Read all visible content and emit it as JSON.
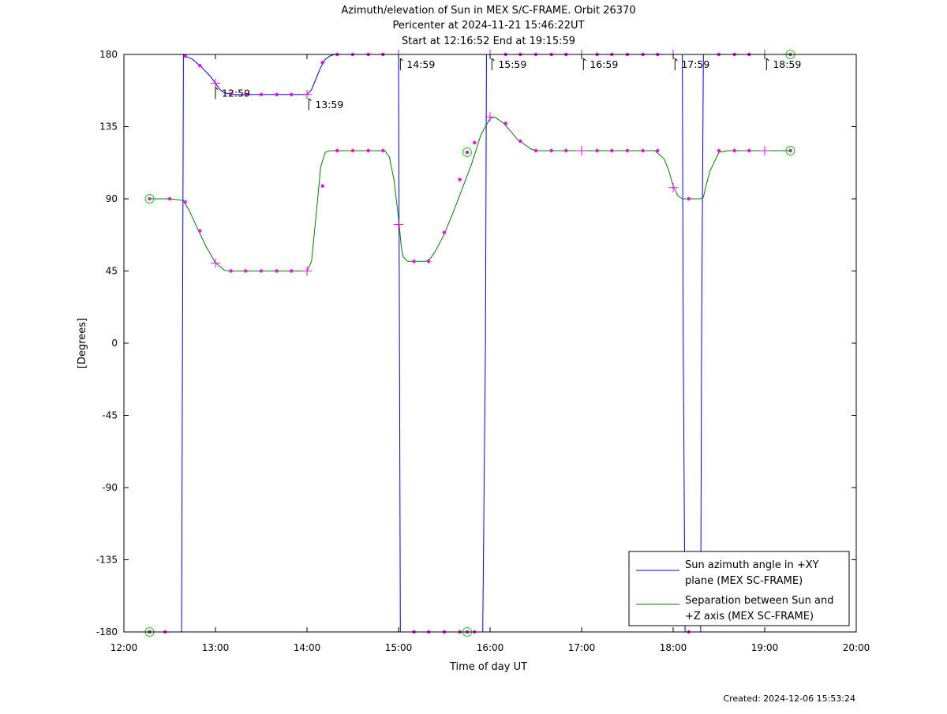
{
  "chart_data": {
    "type": "line",
    "title": [
      "Azimuth/elevation of Sun in MEX S/C-FRAME.  Orbit 26370",
      "Pericenter at 2024-11-21 15:46:22UT",
      "Start at 12:16:52 End at 19:15:59"
    ],
    "xlabel": "Time of day UT",
    "ylabel": "[Degrees]",
    "xlim": [
      12.0,
      20.0
    ],
    "ylim": [
      -180,
      180
    ],
    "x_ticks": [
      {
        "v": 12,
        "label": "12:00"
      },
      {
        "v": 13,
        "label": "13:00"
      },
      {
        "v": 14,
        "label": "14:00"
      },
      {
        "v": 15,
        "label": "15:00"
      },
      {
        "v": 16,
        "label": "16:00"
      },
      {
        "v": 17,
        "label": "17:00"
      },
      {
        "v": 18,
        "label": "18:00"
      },
      {
        "v": 19,
        "label": "19:00"
      },
      {
        "v": 20,
        "label": "20:00"
      }
    ],
    "y_ticks": [
      {
        "v": 180,
        "label": "180"
      },
      {
        "v": 135,
        "label": "135"
      },
      {
        "v": 90,
        "label": "90"
      },
      {
        "v": 45,
        "label": "45"
      },
      {
        "v": 0,
        "label": "0"
      },
      {
        "v": -45,
        "label": "-45"
      },
      {
        "v": -90,
        "label": "-90"
      },
      {
        "v": -135,
        "label": "-135"
      },
      {
        "v": -180,
        "label": "-180"
      }
    ],
    "grid": false,
    "legend_position": "bottom-right",
    "series": [
      {
        "name": "Sun azimuth angle in +XY plane (MEX SC-FRAME)",
        "legend_lines": [
          "Sun azimuth angle in +XY",
          "plane (MEX SC-FRAME)"
        ],
        "color": "#0000ff",
        "x": [
          12.28,
          12.6,
          12.63,
          12.65,
          12.67,
          12.75,
          12.85,
          12.95,
          13.0,
          13.05,
          13.1,
          13.2,
          13.3,
          13.5,
          13.7,
          13.9,
          14.0,
          14.05,
          14.1,
          14.15,
          14.2,
          14.25,
          14.3,
          14.5,
          14.7,
          14.98,
          15.0,
          15.01,
          15.02,
          15.2,
          15.5,
          15.75,
          15.92,
          15.95,
          15.96,
          16.0,
          16.5,
          17.0,
          17.5,
          17.99,
          18.1,
          18.11,
          18.13,
          18.2,
          18.3,
          18.31,
          18.33,
          18.4,
          18.6,
          19.0,
          19.28
        ],
        "y": [
          -180,
          -180,
          -180,
          180,
          179,
          177,
          172,
          166,
          162,
          158,
          156,
          155,
          155,
          155,
          155,
          155,
          155,
          158,
          165,
          172,
          177,
          179,
          180,
          180,
          180,
          180,
          180,
          0,
          -180,
          -180,
          -180,
          -180,
          -180,
          0,
          180,
          180,
          180,
          180,
          180,
          180,
          180,
          0,
          -180,
          -180,
          -180,
          0,
          180,
          180,
          180,
          180,
          180
        ]
      },
      {
        "name": "Separation between Sun and +Z axis (MEX SC-FRAME)",
        "legend_lines": [
          "Separation between Sun and",
          "+Z axis (MEX SC-FRAME)"
        ],
        "color": "#007f00",
        "x": [
          12.28,
          12.5,
          12.65,
          12.72,
          12.8,
          12.9,
          13.0,
          13.1,
          13.15,
          13.3,
          13.6,
          14.0,
          14.05,
          14.1,
          14.15,
          14.2,
          14.25,
          14.35,
          14.6,
          14.85,
          14.9,
          14.95,
          15.0,
          15.03,
          15.05,
          15.1,
          15.3,
          15.35,
          15.4,
          15.5,
          15.6,
          15.7,
          15.8,
          15.9,
          16.0,
          16.05,
          16.15,
          16.3,
          16.45,
          16.5,
          16.7,
          17.0,
          17.5,
          17.8,
          17.9,
          17.95,
          18.0,
          18.05,
          18.1,
          18.3,
          18.33,
          18.35,
          18.4,
          18.5,
          18.6,
          19.0,
          19.28
        ],
        "y": [
          90,
          90,
          89,
          82,
          72,
          60,
          50,
          45.5,
          45,
          45,
          45,
          45,
          51,
          80,
          110,
          119,
          120,
          120,
          120,
          120,
          116,
          102,
          78,
          60,
          54,
          51,
          51,
          53,
          57,
          68,
          82,
          97,
          112,
          130,
          140,
          141,
          137,
          127,
          121,
          120,
          120,
          120,
          120,
          120,
          115,
          108,
          98,
          92,
          90,
          90,
          91,
          96,
          107,
          119,
          120,
          120,
          120
        ]
      }
    ],
    "dot_markers": [
      {
        "x": 12.28,
        "y": -180
      },
      {
        "x": 12.45,
        "y": -180
      },
      {
        "x": 12.67,
        "y": 179
      },
      {
        "x": 12.83,
        "y": 173
      },
      {
        "x": 13.17,
        "y": 155.5
      },
      {
        "x": 13.33,
        "y": 155
      },
      {
        "x": 13.5,
        "y": 155
      },
      {
        "x": 13.67,
        "y": 155
      },
      {
        "x": 13.83,
        "y": 155
      },
      {
        "x": 14.17,
        "y": 175
      },
      {
        "x": 14.33,
        "y": 180
      },
      {
        "x": 14.5,
        "y": 180
      },
      {
        "x": 14.67,
        "y": 180
      },
      {
        "x": 14.83,
        "y": 180
      },
      {
        "x": 15.17,
        "y": -180
      },
      {
        "x": 15.33,
        "y": -180
      },
      {
        "x": 15.5,
        "y": -180
      },
      {
        "x": 15.67,
        "y": -180
      },
      {
        "x": 15.83,
        "y": -180
      },
      {
        "x": 16.17,
        "y": 180
      },
      {
        "x": 16.33,
        "y": 180
      },
      {
        "x": 16.5,
        "y": 180
      },
      {
        "x": 16.67,
        "y": 180
      },
      {
        "x": 16.83,
        "y": 180
      },
      {
        "x": 17.17,
        "y": 180
      },
      {
        "x": 17.33,
        "y": 180
      },
      {
        "x": 17.5,
        "y": 180
      },
      {
        "x": 17.67,
        "y": 180
      },
      {
        "x": 17.83,
        "y": 180
      },
      {
        "x": 18.17,
        "y": -180
      },
      {
        "x": 18.5,
        "y": 180
      },
      {
        "x": 18.67,
        "y": 180
      },
      {
        "x": 18.83,
        "y": 180
      },
      {
        "x": 12.5,
        "y": 90
      },
      {
        "x": 12.67,
        "y": 88
      },
      {
        "x": 12.83,
        "y": 70
      },
      {
        "x": 13.17,
        "y": 45
      },
      {
        "x": 13.33,
        "y": 45
      },
      {
        "x": 13.5,
        "y": 45
      },
      {
        "x": 13.67,
        "y": 45
      },
      {
        "x": 13.83,
        "y": 45
      },
      {
        "x": 14.17,
        "y": 98
      },
      {
        "x": 14.33,
        "y": 120
      },
      {
        "x": 14.5,
        "y": 120
      },
      {
        "x": 14.67,
        "y": 120
      },
      {
        "x": 14.83,
        "y": 120
      },
      {
        "x": 15.17,
        "y": 51
      },
      {
        "x": 15.33,
        "y": 51
      },
      {
        "x": 15.5,
        "y": 69
      },
      {
        "x": 15.67,
        "y": 102
      },
      {
        "x": 15.83,
        "y": 125
      },
      {
        "x": 16.17,
        "y": 137
      },
      {
        "x": 16.33,
        "y": 126
      },
      {
        "x": 16.5,
        "y": 120
      },
      {
        "x": 16.67,
        "y": 120
      },
      {
        "x": 16.83,
        "y": 120
      },
      {
        "x": 17.17,
        "y": 120
      },
      {
        "x": 17.33,
        "y": 120
      },
      {
        "x": 17.5,
        "y": 120
      },
      {
        "x": 17.67,
        "y": 120
      },
      {
        "x": 17.83,
        "y": 120
      },
      {
        "x": 18.17,
        "y": 90
      },
      {
        "x": 18.5,
        "y": 120
      },
      {
        "x": 18.67,
        "y": 120
      },
      {
        "x": 18.83,
        "y": 120
      },
      {
        "x": 19.28,
        "y": 120
      }
    ],
    "plus_markers": [
      {
        "x": 13.0,
        "y": 162
      },
      {
        "x": 14.0,
        "y": 155
      },
      {
        "x": 15.0,
        "y": 180
      },
      {
        "x": 16.0,
        "y": 180
      },
      {
        "x": 17.0,
        "y": 180
      },
      {
        "x": 18.0,
        "y": 180
      },
      {
        "x": 19.0,
        "y": 180
      },
      {
        "x": 13.0,
        "y": 50
      },
      {
        "x": 14.0,
        "y": 45
      },
      {
        "x": 15.0,
        "y": 74
      },
      {
        "x": 16.0,
        "y": 141
      },
      {
        "x": 17.0,
        "y": 120
      },
      {
        "x": 18.0,
        "y": 97
      },
      {
        "x": 19.0,
        "y": 120
      }
    ],
    "circle_markers": [
      {
        "x": 12.28,
        "y": 90
      },
      {
        "x": 12.28,
        "y": -180
      },
      {
        "x": 15.75,
        "y": 119
      },
      {
        "x": 15.75,
        "y": -180
      },
      {
        "x": 19.28,
        "y": 180
      },
      {
        "x": 19.28,
        "y": 120
      }
    ],
    "annotations": [
      {
        "x": 13.0,
        "y": 162,
        "label": "12:59"
      },
      {
        "x": 14.02,
        "y": 155,
        "label": "13:59"
      },
      {
        "x": 15.02,
        "y": 180,
        "label": "14:59"
      },
      {
        "x": 16.02,
        "y": 180,
        "label": "15:59"
      },
      {
        "x": 17.02,
        "y": 180,
        "label": "16:59"
      },
      {
        "x": 18.02,
        "y": 180,
        "label": "17:59"
      },
      {
        "x": 19.02,
        "y": 180,
        "label": "18:59"
      }
    ],
    "created": "Created: 2024-12-06 15:53:24"
  }
}
